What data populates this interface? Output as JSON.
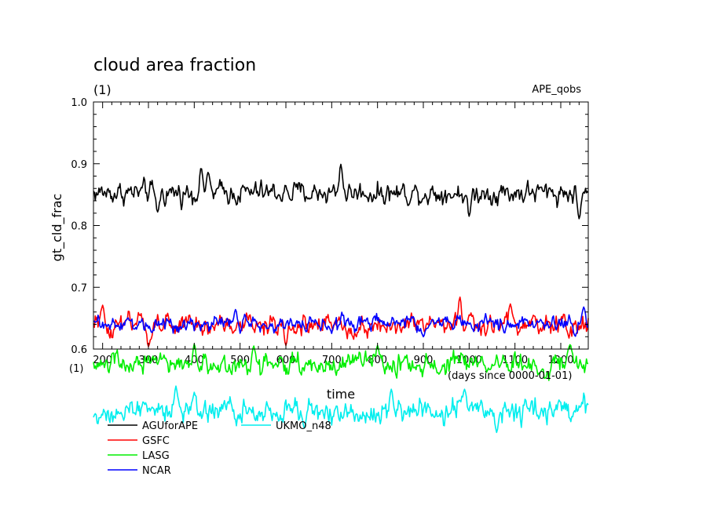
{
  "chart_data": {
    "type": "line",
    "title": "cloud area fraction",
    "subtitle": "(1)",
    "experiment": "APE_qobs",
    "ylabel": "gt_cld_frac",
    "y_unit": "(1)",
    "xlabel": "time",
    "x_unit": "(days since 0000-01-01)",
    "xlim": [
      180,
      1260
    ],
    "ylim": [
      0.6,
      1.0
    ],
    "y_ticks": [
      "0.6",
      "0.7",
      "0.8",
      "0.9",
      "1.0"
    ],
    "x_ticks": [
      "200",
      "300",
      "400",
      "500",
      "600",
      "700",
      "800",
      "900",
      "1000",
      "1100",
      "1200"
    ],
    "grid": false,
    "legend_position": "bottom-left",
    "series": [
      {
        "name": "AGUforAPE",
        "color": "#000000",
        "mean": 0.853,
        "sd": 0.011,
        "spikes": [
          [
            320,
            0.822
          ],
          [
            415,
            0.893
          ],
          [
            430,
            0.886
          ],
          [
            720,
            0.899
          ],
          [
            1000,
            0.815
          ],
          [
            1240,
            0.811
          ]
        ]
      },
      {
        "name": "GSFC",
        "color": "#ff0000",
        "mean": 0.638,
        "sd": 0.011,
        "spikes": [
          [
            200,
            0.671
          ],
          [
            980,
            0.684
          ],
          [
            1090,
            0.673
          ],
          [
            300,
            0.604
          ],
          [
            600,
            0.606
          ]
        ]
      },
      {
        "name": "LASG",
        "color": "#00ee00",
        "mean": 0.575,
        "sd": 0.011,
        "spikes": [
          [
            400,
            0.608
          ],
          [
            530,
            0.605
          ],
          [
            800,
            0.606
          ],
          [
            1220,
            0.607
          ]
        ]
      },
      {
        "name": "NCAR",
        "color": "#0000ff",
        "mean": 0.641,
        "sd": 0.008,
        "spikes": [
          [
            1250,
            0.668
          ],
          [
            490,
            0.664
          ],
          [
            900,
            0.62
          ]
        ]
      },
      {
        "name": "UKMO_n48",
        "color": "#00eeee",
        "mean": 0.5,
        "sd": 0.012,
        "spikes": [
          [
            360,
            0.54
          ],
          [
            400,
            0.53
          ],
          [
            830,
            0.535
          ],
          [
            990,
            0.535
          ],
          [
            640,
            0.472
          ],
          [
            1060,
            0.465
          ]
        ]
      }
    ]
  }
}
